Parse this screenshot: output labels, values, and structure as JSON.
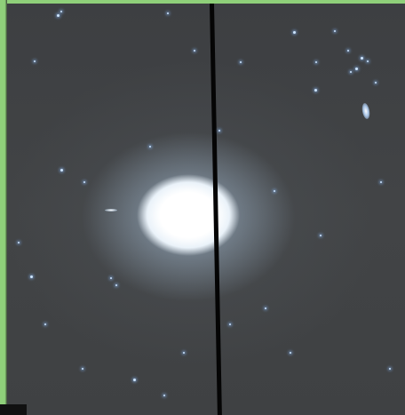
{
  "image": {
    "subject": "elliptical-galaxy-deep-field",
    "colors": {
      "border": "#8fd07a",
      "sky": "#414345",
      "core": "#ffffff",
      "halo": "#cde1f5",
      "seam": "#050505",
      "stars": "#cfe6ff"
    }
  }
}
